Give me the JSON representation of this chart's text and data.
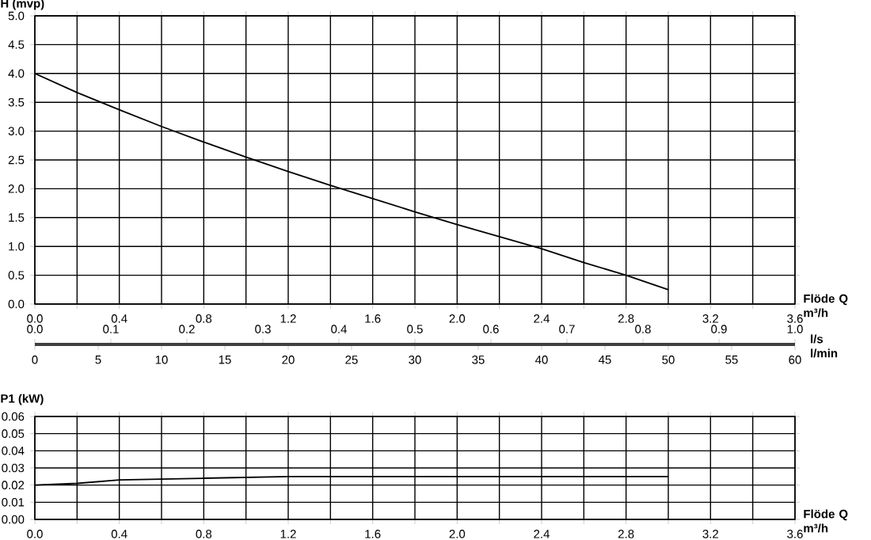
{
  "chart_data": [
    {
      "type": "line",
      "ylabel": "H (mvp)",
      "xlabel": "Flöde Q m³/h",
      "x2label": "l/s",
      "grid": true,
      "marker": "none",
      "color": "#000000",
      "x": [
        0,
        0.2,
        0.4,
        0.6,
        0.8,
        1.0,
        1.2,
        1.4,
        1.6,
        1.8,
        2.0,
        2.2,
        2.4,
        2.6,
        2.8,
        3.0
      ],
      "values": [
        4.0,
        3.67,
        3.37,
        3.08,
        2.81,
        2.55,
        2.3,
        2.06,
        1.83,
        1.6,
        1.38,
        1.17,
        0.96,
        0.72,
        0.5,
        0.25
      ],
      "xlim": [
        0,
        3.6
      ],
      "xticks": [
        {
          "value": 0,
          "label": "0.0"
        },
        {
          "value": 0.2,
          "label": null
        },
        {
          "value": 0.4,
          "label": "0.4"
        },
        {
          "value": 0.6,
          "label": null
        },
        {
          "value": 0.8,
          "label": "0.8"
        },
        {
          "value": 1.0,
          "label": null
        },
        {
          "value": 1.2,
          "label": "1.2"
        },
        {
          "value": 1.4,
          "label": null
        },
        {
          "value": 1.6,
          "label": "1.6"
        },
        {
          "value": 1.8,
          "label": null
        },
        {
          "value": 2.0,
          "label": "2.0"
        },
        {
          "value": 2.2,
          "label": null
        },
        {
          "value": 2.4,
          "label": "2.4"
        },
        {
          "value": 2.6,
          "label": null
        },
        {
          "value": 2.8,
          "label": "2.8"
        },
        {
          "value": 3.0,
          "label": null
        },
        {
          "value": 3.2,
          "label": "3.2"
        },
        {
          "value": 3.4,
          "label": null
        },
        {
          "value": 3.6,
          "label": "3.6"
        }
      ],
      "ylim": [
        0,
        5
      ],
      "yticks": [
        {
          "value": 0,
          "label": "0.0"
        },
        {
          "value": 0.5,
          "label": "0.5"
        },
        {
          "value": 1,
          "label": "1.0"
        },
        {
          "value": 1.5,
          "label": "1.5"
        },
        {
          "value": 2,
          "label": "2.0"
        },
        {
          "value": 2.5,
          "label": "2.5"
        },
        {
          "value": 3,
          "label": "3.0"
        },
        {
          "value": 3.5,
          "label": "3.5"
        },
        {
          "value": 4,
          "label": "4.0"
        },
        {
          "value": 4.5,
          "label": "4.5"
        },
        {
          "value": 5,
          "label": "5.0"
        }
      ],
      "x2lim": [
        0,
        1
      ],
      "x2ticks": [
        {
          "value": 0,
          "label": "0.0"
        },
        0.1,
        0.2,
        0.3,
        0.4,
        0.5,
        0.6,
        0.7,
        0.8,
        0.9,
        {
          "value": 1,
          "label": "1.0"
        }
      ]
    },
    {
      "type": "line",
      "ylabel": "P1 (kW)",
      "xlabel": "Flöde Q m³/h",
      "x2label": "l/min",
      "grid": true,
      "marker": "none",
      "color": "#000000",
      "x2lim": [
        0,
        60
      ],
      "x2ticks": [
        0,
        5,
        10,
        15,
        20,
        25,
        30,
        35,
        40,
        45,
        50,
        55,
        60
      ],
      "x": [
        0,
        0.2,
        0.4,
        0.8,
        1.2,
        1.6,
        2.0,
        2.4,
        2.8,
        3.0
      ],
      "values": [
        0.02,
        0.021,
        0.023,
        0.024,
        0.025,
        0.025,
        0.025,
        0.025,
        0.025,
        0.025
      ],
      "xlim": [
        0,
        3.6
      ],
      "xticks": [
        {
          "value": 0,
          "label": "0.0"
        },
        {
          "value": 0.2,
          "label": null
        },
        {
          "value": 0.4,
          "label": "0.4"
        },
        {
          "value": 0.6,
          "label": null
        },
        {
          "value": 0.8,
          "label": "0.8"
        },
        {
          "value": 1.0,
          "label": null
        },
        {
          "value": 1.2,
          "label": "1.2"
        },
        {
          "value": 1.4,
          "label": null
        },
        {
          "value": 1.6,
          "label": "1.6"
        },
        {
          "value": 1.8,
          "label": null
        },
        {
          "value": 2.0,
          "label": "2.0"
        },
        {
          "value": 2.2,
          "label": null
        },
        {
          "value": 2.4,
          "label": "2.4"
        },
        {
          "value": 2.6,
          "label": null
        },
        {
          "value": 2.8,
          "label": "2.8"
        },
        {
          "value": 3.0,
          "label": null
        },
        {
          "value": 3.2,
          "label": "3.2"
        },
        {
          "value": 3.4,
          "label": null
        },
        {
          "value": 3.6,
          "label": "3.6"
        }
      ],
      "ylim": [
        0,
        0.06
      ],
      "yticks": [
        {
          "value": 0,
          "label": "0.00"
        },
        {
          "value": 0.01,
          "label": "0.01"
        },
        {
          "value": 0.02,
          "label": "0.02"
        },
        {
          "value": 0.03,
          "label": "0.03"
        },
        {
          "value": 0.04,
          "label": "0.04"
        },
        {
          "value": 0.05,
          "label": "0.05"
        },
        {
          "value": 0.06,
          "label": "0.06"
        }
      ]
    }
  ]
}
